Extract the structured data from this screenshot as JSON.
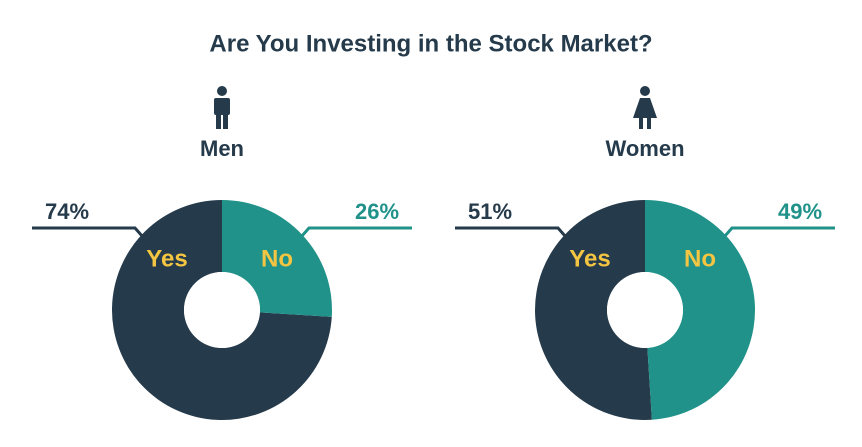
{
  "title": "Are You Investing in the Stock Market?",
  "chart_data": [
    {
      "type": "pie",
      "title": "Men",
      "categories": [
        "Yes",
        "No"
      ],
      "values": [
        74,
        26
      ],
      "value_labels": [
        "74%",
        "26%"
      ],
      "colors": [
        "#253a4a",
        "#20928a"
      ],
      "label_color": "#f4c542"
    },
    {
      "type": "pie",
      "title": "Women",
      "categories": [
        "Yes",
        "No"
      ],
      "values": [
        51,
        49
      ],
      "value_labels": [
        "51%",
        "49%"
      ],
      "colors": [
        "#253a4a",
        "#20928a"
      ],
      "label_color": "#f4c542"
    }
  ]
}
